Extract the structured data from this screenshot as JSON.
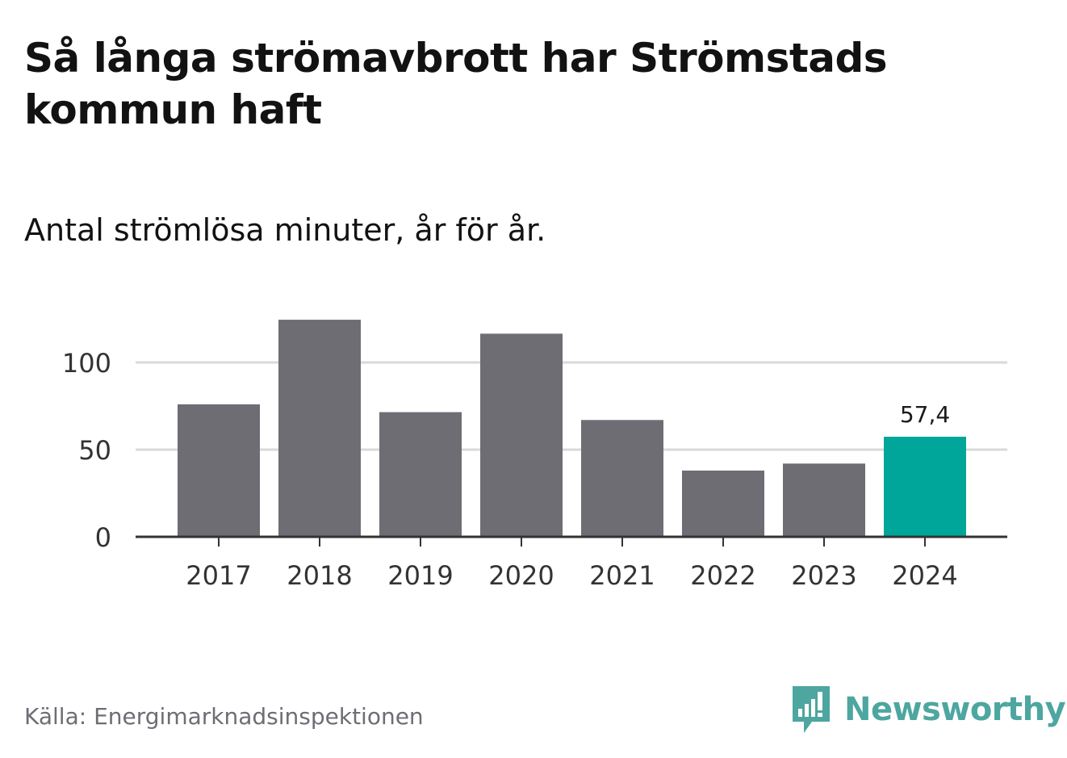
{
  "title": "Så långa strömavbrott har Strömstads kommun haft",
  "subtitle": "Antal strömlösa minuter, år för år.",
  "source": "Källa: Energimarknadsinspektionen",
  "brand": {
    "name": "Newsworthy",
    "logo_icon": "newsworthy-bar-chart-speech-bubble-icon",
    "color": "#4da6a0"
  },
  "colors": {
    "bar_default": "#6e6d74",
    "bar_highlight": "#00a69a",
    "gridline": "#d9d9d9",
    "axis": "#333333",
    "tick_text": "#333333"
  },
  "chart_data": {
    "type": "bar",
    "title": "Så långa strömavbrott har Strömstads kommun haft",
    "subtitle": "Antal strömlösa minuter, år för år.",
    "xlabel": "",
    "ylabel": "",
    "categories": [
      "2017",
      "2018",
      "2019",
      "2020",
      "2021",
      "2022",
      "2023",
      "2024"
    ],
    "values": [
      76,
      124.5,
      71.5,
      116.5,
      67,
      38,
      42,
      57.4
    ],
    "highlight_index": 7,
    "data_labels": [
      {
        "index": 7,
        "text": "57,4"
      }
    ],
    "y_ticks": [
      0,
      50,
      100
    ],
    "y_tick_labels": [
      "0",
      "50",
      "100"
    ],
    "ylim": [
      0,
      125
    ],
    "grid": true
  }
}
